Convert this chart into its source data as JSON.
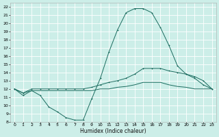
{
  "xlabel": "Humidex (Indice chaleur)",
  "bg_color": "#cceee8",
  "grid_color": "#ffffff",
  "line_color": "#1a6b5e",
  "ylim": [
    8,
    22.5
  ],
  "xlim": [
    -0.5,
    23.5
  ],
  "yticks": [
    8,
    9,
    10,
    11,
    12,
    13,
    14,
    15,
    16,
    17,
    18,
    19,
    20,
    21,
    22
  ],
  "xticks": [
    0,
    1,
    2,
    3,
    4,
    5,
    6,
    7,
    8,
    9,
    10,
    11,
    12,
    13,
    14,
    15,
    16,
    17,
    18,
    19,
    20,
    21,
    22,
    23
  ],
  "line1_x": [
    0,
    1,
    2,
    3,
    4,
    5,
    6,
    7,
    8,
    9,
    10,
    11,
    12,
    13,
    14,
    15,
    16,
    17,
    18,
    19,
    20,
    21,
    22,
    23
  ],
  "line1_y": [
    12.0,
    11.2,
    11.8,
    11.2,
    9.8,
    9.2,
    8.5,
    8.2,
    8.2,
    10.8,
    13.3,
    16.5,
    19.2,
    21.3,
    21.8,
    21.8,
    21.3,
    19.5,
    17.3,
    14.8,
    13.8,
    13.3,
    12.5,
    12.0
  ],
  "line2_x": [
    0,
    1,
    2,
    3,
    4,
    5,
    6,
    7,
    8,
    9,
    10,
    11,
    12,
    13,
    14,
    15,
    16,
    17,
    18,
    19,
    20,
    21,
    22,
    23
  ],
  "line2_y": [
    12.0,
    11.5,
    12.0,
    12.0,
    12.0,
    12.0,
    12.0,
    12.0,
    12.0,
    12.2,
    12.5,
    12.8,
    13.0,
    13.3,
    13.8,
    14.5,
    14.5,
    14.5,
    14.2,
    14.0,
    13.8,
    13.5,
    13.0,
    12.0
  ],
  "line3_x": [
    0,
    1,
    2,
    3,
    4,
    5,
    6,
    7,
    8,
    9,
    10,
    11,
    12,
    13,
    14,
    15,
    16,
    17,
    18,
    19,
    20,
    21,
    22,
    23
  ],
  "line3_y": [
    12.0,
    11.5,
    11.8,
    11.8,
    11.8,
    11.8,
    11.8,
    11.8,
    11.8,
    11.8,
    12.0,
    12.0,
    12.2,
    12.3,
    12.5,
    12.8,
    12.8,
    12.8,
    12.5,
    12.3,
    12.2,
    12.0,
    12.0,
    12.0
  ],
  "tick_fontsize": 4.5,
  "xlabel_fontsize": 5.5,
  "lw": 0.7,
  "ms": 2.0
}
